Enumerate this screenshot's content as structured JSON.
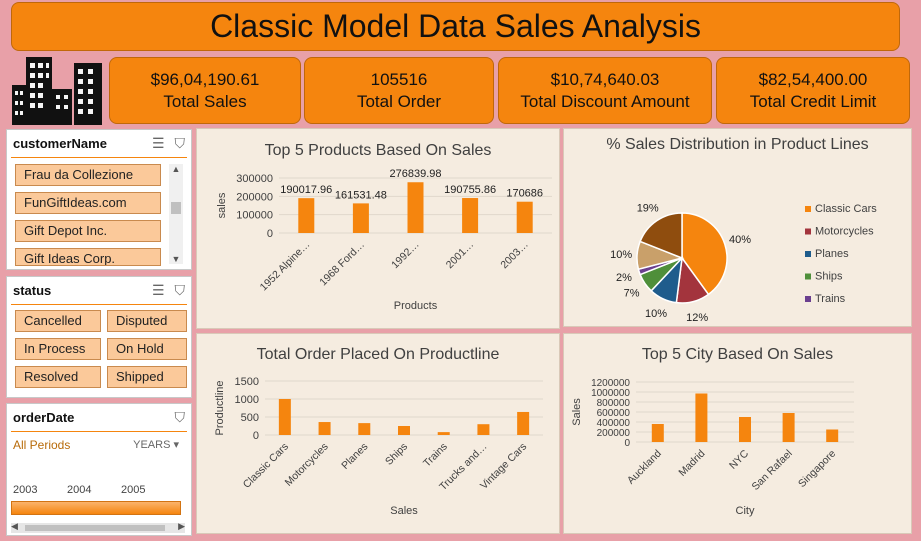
{
  "header": {
    "title": "Classic Model Data Sales Analysis"
  },
  "kpis": [
    {
      "value": "$96,04,190.61",
      "label": "Total Sales"
    },
    {
      "value": "105516",
      "label": "Total Order"
    },
    {
      "value": "$10,74,640.03",
      "label": "Total Discount Amount"
    },
    {
      "value": "$82,54,400.00",
      "label": "Total Credit Limit"
    }
  ],
  "slicers": {
    "customer": {
      "title": "customerName",
      "items": [
        "Frau da Collezione",
        "FunGiftIdeas.com",
        "Gift Depot Inc.",
        "Gift Ideas Corp."
      ]
    },
    "status": {
      "title": "status",
      "items": [
        "Cancelled",
        "Disputed",
        "In Process",
        "On Hold",
        "Resolved",
        "Shipped"
      ]
    },
    "orderDate": {
      "title": "orderDate",
      "period": "All Periods",
      "unit": "YEARS",
      "years": [
        "2003",
        "2004",
        "2005"
      ]
    }
  },
  "colors": {
    "bar": "#f5850e",
    "classic": "#f5850e",
    "motorcycles": "#a3343d",
    "planes": "#1f5c8c",
    "ships": "#4f8f3a",
    "trains": "#6b3f8f",
    "trucks": "#c9a06a",
    "vintage": "#8f4d0e"
  },
  "chart_data": [
    {
      "type": "bar",
      "title": "Top 5 Products Based On Sales",
      "xlabel": "Products",
      "ylabel": "sales",
      "ylim": [
        0,
        300000
      ],
      "yticks": [
        "0",
        "100000",
        "200000",
        "300000"
      ],
      "categories": [
        "1952 Alpine…",
        "1968 Ford…",
        "1992…",
        "2001…",
        "2003…"
      ],
      "values": [
        190017.96,
        161531.48,
        276839.98,
        190755.86,
        170686
      ],
      "labels": [
        "190017.96",
        "161531.48",
        "276839.98",
        "190755.86",
        "170686"
      ]
    },
    {
      "type": "pie",
      "title": "% Sales Distribution in Product Lines",
      "legend": [
        "Classic Cars",
        "Motorcycles",
        "Planes",
        "Ships",
        "Trains"
      ],
      "values": [
        40,
        12,
        10,
        7,
        2,
        10,
        19
      ],
      "labels": [
        "40%",
        "12%",
        "10%",
        "7%",
        "2%",
        "10%",
        "19%"
      ]
    },
    {
      "type": "bar",
      "title": "Total Order Placed On Productline",
      "xlabel": "Sales",
      "ylabel": "Productline",
      "ylim": [
        0,
        1500
      ],
      "yticks": [
        "0",
        "500",
        "1000",
        "1500"
      ],
      "categories": [
        "Classic Cars",
        "Motorcycles",
        "Planes",
        "Ships",
        "Trains",
        "Trucks and…",
        "Vintage Cars"
      ],
      "values": [
        1000,
        360,
        330,
        250,
        80,
        300,
        640
      ]
    },
    {
      "type": "bar",
      "title": "Top 5 City Based On Sales",
      "xlabel": "City",
      "ylabel": "Sales",
      "ylim": [
        0,
        1200000
      ],
      "yticks": [
        "0",
        "200000",
        "400000",
        "600000",
        "800000",
        "1000000",
        "1200000"
      ],
      "categories": [
        "Auckland",
        "Madrid",
        "NYC",
        "San Rafael",
        "Singapore"
      ],
      "values": [
        360000,
        970000,
        500000,
        580000,
        250000
      ]
    }
  ]
}
